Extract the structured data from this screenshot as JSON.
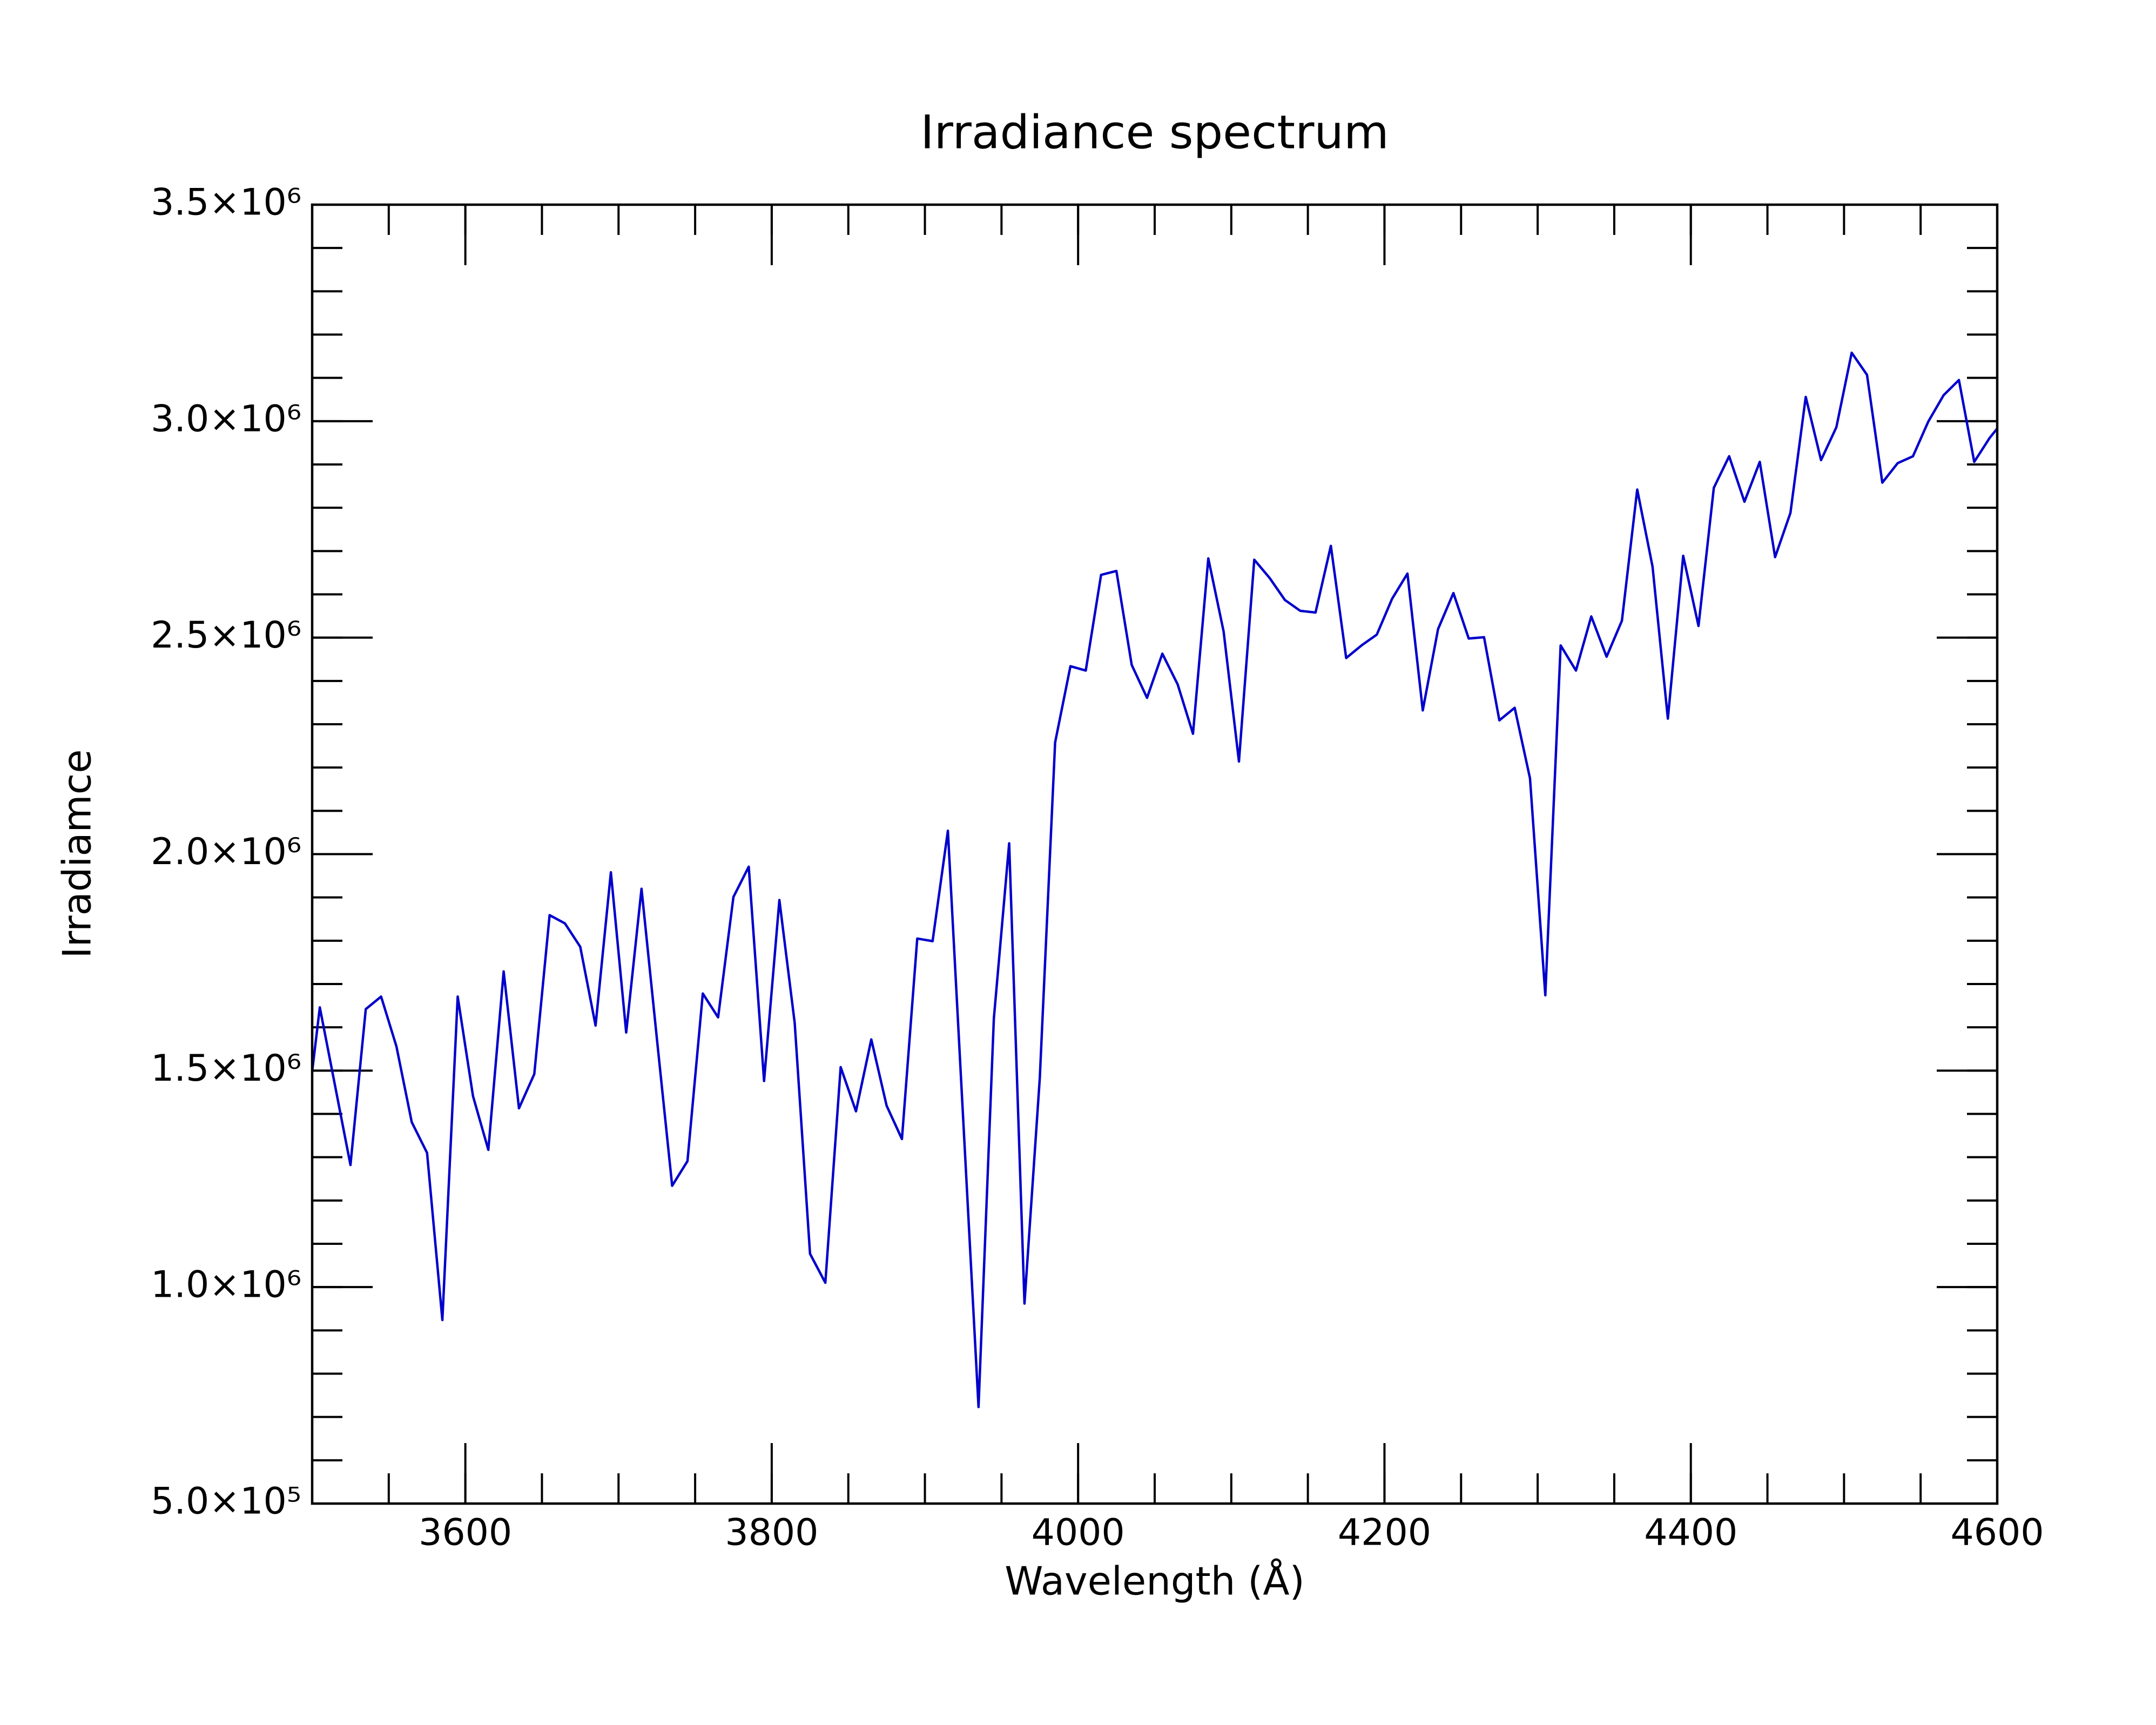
{
  "chart_data": {
    "type": "line",
    "title": "Irradiance spectrum",
    "x_label": "Wavelength (Å)",
    "y_label": "Irradiamce",
    "xlim": [
      3500,
      4600
    ],
    "ylim": [
      500000,
      3500000
    ],
    "xticks": [
      3600,
      3800,
      4000,
      4200,
      4400,
      4600
    ],
    "xminorticks": [
      3550,
      3600,
      3650,
      3700,
      3750,
      3800,
      3850,
      3900,
      3950,
      4000,
      4050,
      4100,
      4150,
      4200,
      4250,
      4300,
      4350,
      4400,
      4450,
      4500,
      4550
    ],
    "yticks": [
      {
        "value": 500000,
        "label": "5.0×10⁵"
      },
      {
        "value": 1000000,
        "label": "1.0×10⁶"
      },
      {
        "value": 1500000,
        "label": "1.5×10⁶"
      },
      {
        "value": 2000000,
        "label": "2.0×10⁶"
      },
      {
        "value": 2500000,
        "label": "2.5×10⁶"
      },
      {
        "value": 3000000,
        "label": "3.0×10⁶"
      },
      {
        "value": 3500000,
        "label": "3.5×10⁶"
      }
    ],
    "yminorticks": [
      600000,
      700000,
      800000,
      900000,
      1000000,
      1100000,
      1200000,
      1300000,
      1400000,
      1500000,
      1600000,
      1700000,
      1800000,
      1900000,
      2000000,
      2100000,
      2200000,
      2300000,
      2400000,
      2500000,
      2600000,
      2700000,
      2800000,
      2900000,
      3000000,
      3100000,
      3200000,
      3300000,
      3400000
    ],
    "color": "#0000cc",
    "x": [
      3495,
      3505,
      3515,
      3525,
      3535,
      3545,
      3555,
      3565,
      3575,
      3585,
      3595,
      3605,
      3615,
      3625,
      3635,
      3645,
      3655,
      3665,
      3675,
      3685,
      3695,
      3705,
      3715,
      3725,
      3735,
      3745,
      3755,
      3765,
      3775,
      3785,
      3795,
      3805,
      3815,
      3825,
      3835,
      3845,
      3855,
      3865,
      3875,
      3885,
      3895,
      3905,
      3915,
      3925,
      3935,
      3945,
      3955,
      3965,
      3975,
      3985,
      3995,
      4005,
      4015,
      4025,
      4035,
      4045,
      4055,
      4065,
      4075,
      4085,
      4095,
      4105,
      4115,
      4125,
      4135,
      4145,
      4155,
      4165,
      4175,
      4185,
      4195,
      4205,
      4215,
      4225,
      4235,
      4245,
      4255,
      4265,
      4275,
      4285,
      4295,
      4305,
      4315,
      4325,
      4335,
      4345,
      4355,
      4365,
      4375,
      4385,
      4395,
      4405,
      4415,
      4425,
      4435,
      4445,
      4455,
      4465,
      4475,
      4485,
      4495,
      4505,
      4515,
      4525,
      4535,
      4545,
      4555,
      4565,
      4575,
      4585,
      4595,
      4605
    ],
    "values": [
      1350000,
      1646000,
      1464000,
      1282000,
      1642000,
      1671000,
      1556000,
      1381000,
      1310000,
      924000,
      1671000,
      1441000,
      1317000,
      1729000,
      1413000,
      1492000,
      1859000,
      1840000,
      1786000,
      1604000,
      1958000,
      1588000,
      1920000,
      1575000,
      1234000,
      1291000,
      1678000,
      1623000,
      1901000,
      1971000,
      1476000,
      1894000,
      1610000,
      1077000,
      1010000,
      1508000,
      1406000,
      1572000,
      1419000,
      1342000,
      1805000,
      1799000,
      2054000,
      1387000,
      723000,
      1620000,
      2025000,
      962000,
      1483000,
      2258000,
      2434000,
      2424000,
      2645000,
      2654000,
      2437000,
      2361000,
      2463000,
      2392000,
      2278000,
      2683000,
      2514000,
      2214000,
      2680000,
      2638000,
      2587000,
      2562000,
      2558000,
      2712000,
      2453000,
      2482000,
      2507000,
      2590000,
      2648000,
      2332000,
      2520000,
      2603000,
      2498000,
      2501000,
      2309000,
      2338000,
      2175000,
      1674000,
      2482000,
      2424000,
      2549000,
      2456000,
      2539000,
      2842000,
      2664000,
      2313000,
      2689000,
      2527000,
      2846000,
      2919000,
      2814000,
      2906000,
      2686000,
      2788000,
      3056000,
      2910000,
      2986000,
      3158000,
      3107000,
      2858000,
      2903000,
      2919000,
      2999000,
      3060000,
      3095000,
      2906000,
      2961000,
      3005000
    ]
  }
}
